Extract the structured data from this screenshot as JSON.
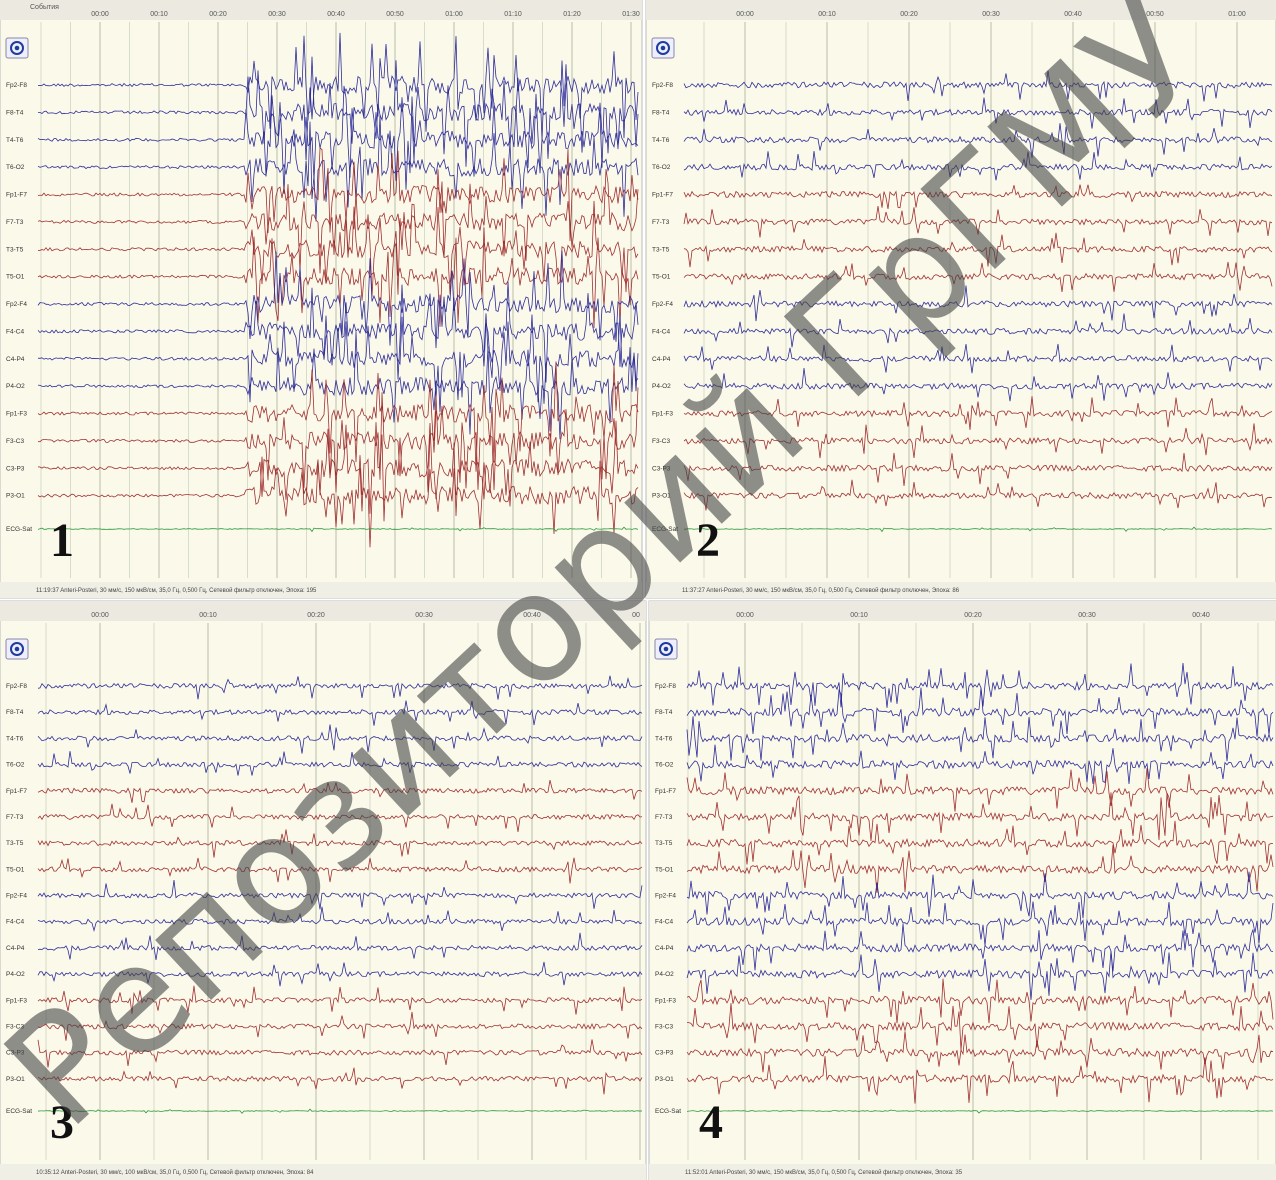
{
  "event_label": "События",
  "channels": [
    "Fp2-F8",
    "F8-T4",
    "T4-T6",
    "T6-O2",
    "Fp1-F7",
    "F7-T3",
    "T3-T5",
    "T5-O1",
    "Fp2-F4",
    "F4-C4",
    "C4-P4",
    "P4-O2",
    "Fp1-F3",
    "F3-C3",
    "C3-P3",
    "P3-O1",
    "ECG-Sat"
  ],
  "panels": [
    {
      "number": "1",
      "time_ticks": [
        "00:00",
        "00:10",
        "00:20",
        "00:30",
        "00:40",
        "00:50",
        "01:00",
        "01:10",
        "01:20",
        "01:30"
      ],
      "status": "11:19:37 Anteri-Posteri, 30 мм/с, 150 мкВ/см, 35,0 Гц, 0,500 Гц, Сетевой фильтр отключен, Эпоха: 195"
    },
    {
      "number": "2",
      "time_ticks": [
        "00:00",
        "00:10",
        "00:20",
        "00:30",
        "00:40",
        "00:50",
        "01:00"
      ],
      "status": "11:37:27 Anteri-Posteri, 30 мм/с, 150 мкВ/см, 35,0 Гц, 0,500 Гц, Сетевой фильтр отключен, Эпоха: 86"
    },
    {
      "number": "3",
      "time_ticks": [
        "00:00",
        "00:10",
        "00:20",
        "00:30",
        "00:40",
        "00"
      ],
      "status": "10:35:12 Anteri-Posteri, 30 мм/с, 100 мкВ/см, 35,0 Гц, 0,500 Гц, Сетевой фильтр отключен, Эпоха: 84"
    },
    {
      "number": "4",
      "time_ticks": [
        "00:00",
        "00:10",
        "00:20",
        "00:30",
        "00:40"
      ],
      "status": "11:52:01 Anteri-Posteri, 30 мм/с, 150 мкВ/см, 35,0 Гц, 0,500 Гц, Сетевой фильтр отключен, Эпоха: 35"
    }
  ],
  "watermark": "Репозиторий ГрГМУ"
}
